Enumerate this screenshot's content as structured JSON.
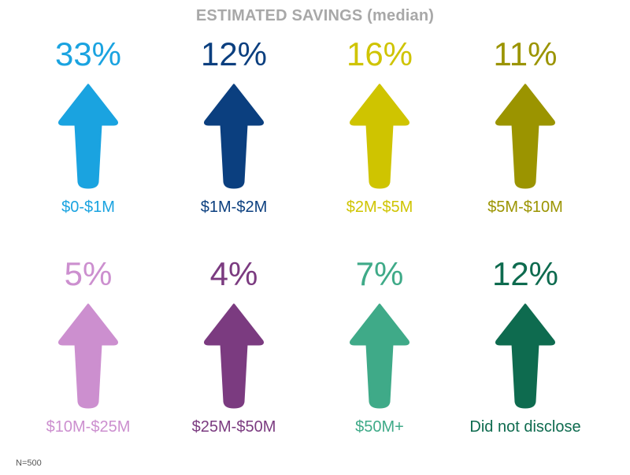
{
  "chart_data": {
    "type": "table",
    "title": "ESTIMATED SAVINGS (median)",
    "footnote": "N=500",
    "unit": "%",
    "categories": [
      "$0-$1M",
      "$1M-$2M",
      "$2M-$5M",
      "$5M-$10M",
      "$10M-$25M",
      "$25M-$50M",
      "$50M+",
      "Did not disclose"
    ],
    "values": [
      33,
      12,
      16,
      11,
      5,
      4,
      7,
      12
    ],
    "items": [
      {
        "label": "$0-$1M",
        "value": 33,
        "value_text": "33%",
        "color": "#1aa3e0"
      },
      {
        "label": "$1M-$2M",
        "value": 12,
        "value_text": "12%",
        "color": "#0b3f7f"
      },
      {
        "label": "$2M-$5M",
        "value": 16,
        "value_text": "16%",
        "color": "#cfc400"
      },
      {
        "label": "$5M-$10M",
        "value": 11,
        "value_text": "11%",
        "color": "#9b9400"
      },
      {
        "label": "$10M-$25M",
        "value": 5,
        "value_text": "5%",
        "color": "#cc8fcf"
      },
      {
        "label": "$25M-$50M",
        "value": 4,
        "value_text": "4%",
        "color": "#7b3b80"
      },
      {
        "label": "$50M+",
        "value": 7,
        "value_text": "7%",
        "color": "#3faa88"
      },
      {
        "label": "Did not disclose",
        "value": 12,
        "value_text": "12%",
        "color": "#0e6b4f"
      }
    ]
  }
}
